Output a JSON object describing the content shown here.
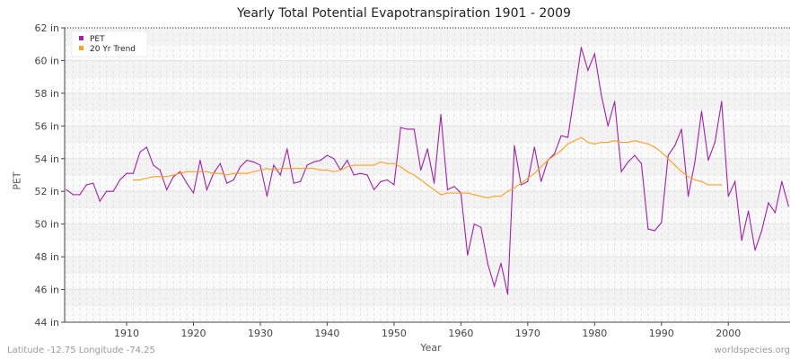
{
  "chart_data": {
    "type": "line",
    "title": "Yearly Total Potential Evapotranspiration 1901 - 2009",
    "xlabel": "Year",
    "ylabel": "PET",
    "xlim": [
      1901,
      2009
    ],
    "ylim": [
      44,
      62
    ],
    "x_ticks": [
      1910,
      1920,
      1930,
      1940,
      1950,
      1960,
      1970,
      1980,
      1990,
      2000
    ],
    "y_ticks": [
      {
        "v": 44,
        "label": "44 in"
      },
      {
        "v": 46,
        "label": "46 in"
      },
      {
        "v": 48,
        "label": "48 in"
      },
      {
        "v": 50,
        "label": "50 in"
      },
      {
        "v": 52,
        "label": "52 in"
      },
      {
        "v": 54,
        "label": "54 in"
      },
      {
        "v": 56,
        "label": "56 in"
      },
      {
        "v": 58,
        "label": "58 in"
      },
      {
        "v": 60,
        "label": "60 in"
      },
      {
        "v": 62,
        "label": "62 in"
      }
    ],
    "grid": true,
    "legend": "top-left",
    "series": [
      {
        "name": "PET",
        "color": "#a020a8",
        "start_year": 1901,
        "values": [
          52.1,
          51.8,
          51.8,
          52.4,
          52.5,
          51.4,
          52.0,
          52.0,
          52.7,
          53.1,
          53.1,
          54.4,
          54.7,
          53.6,
          53.3,
          52.1,
          52.9,
          53.2,
          52.5,
          51.9,
          53.9,
          52.1,
          53.1,
          53.7,
          52.5,
          52.7,
          53.5,
          53.9,
          53.8,
          53.6,
          51.7,
          53.6,
          53.0,
          54.6,
          52.5,
          52.6,
          53.6,
          53.8,
          53.9,
          54.2,
          54.0,
          53.3,
          53.9,
          53.0,
          53.1,
          53.0,
          52.1,
          52.6,
          52.7,
          52.4,
          55.9,
          55.8,
          55.8,
          53.3,
          54.6,
          52.5,
          56.7,
          52.1,
          52.3,
          51.9,
          48.1,
          50.0,
          49.8,
          47.6,
          46.2,
          47.6,
          45.7,
          54.8,
          52.4,
          52.6,
          54.7,
          52.6,
          53.9,
          54.3,
          55.4,
          55.3,
          58.0,
          60.8,
          59.4,
          60.4,
          57.9,
          56.0,
          57.5,
          53.2,
          53.8,
          54.2,
          53.7,
          49.7,
          49.6,
          50.1,
          54.2,
          54.8,
          55.8,
          51.7,
          53.8,
          56.9,
          53.9,
          55.0,
          57.5,
          51.7,
          52.6,
          49.0,
          50.8,
          48.4,
          49.6,
          51.3,
          50.7,
          52.6,
          51.1
        ]
      },
      {
        "name": "20 Yr Trend",
        "color": "#ffa020",
        "start_year": 1911,
        "values": [
          52.7,
          52.7,
          52.8,
          52.9,
          52.9,
          52.9,
          53.0,
          53.1,
          53.2,
          53.2,
          53.2,
          53.2,
          53.1,
          53.1,
          53.0,
          53.1,
          53.1,
          53.1,
          53.2,
          53.3,
          53.4,
          53.3,
          53.4,
          53.4,
          53.4,
          53.4,
          53.4,
          53.4,
          53.3,
          53.3,
          53.2,
          53.3,
          53.5,
          53.6,
          53.6,
          53.6,
          53.6,
          53.8,
          53.7,
          53.7,
          53.5,
          53.2,
          53.0,
          52.7,
          52.4,
          52.1,
          51.8,
          51.9,
          51.9,
          51.9,
          51.9,
          51.8,
          51.7,
          51.6,
          51.7,
          51.7,
          52.0,
          52.2,
          52.5,
          52.8,
          53.1,
          53.5,
          53.9,
          54.2,
          54.5,
          54.9,
          55.1,
          55.3,
          55.0,
          54.9,
          55.0,
          55.0,
          55.1,
          55.0,
          55.0,
          55.1,
          55.0,
          54.9,
          54.7,
          54.4,
          54.0,
          53.6,
          53.2,
          52.9,
          52.7,
          52.6,
          52.4,
          52.4,
          52.4
        ]
      }
    ]
  },
  "footer": {
    "left": "Latitude -12.75 Longitude -74.25",
    "right": "worldspecies.org"
  }
}
